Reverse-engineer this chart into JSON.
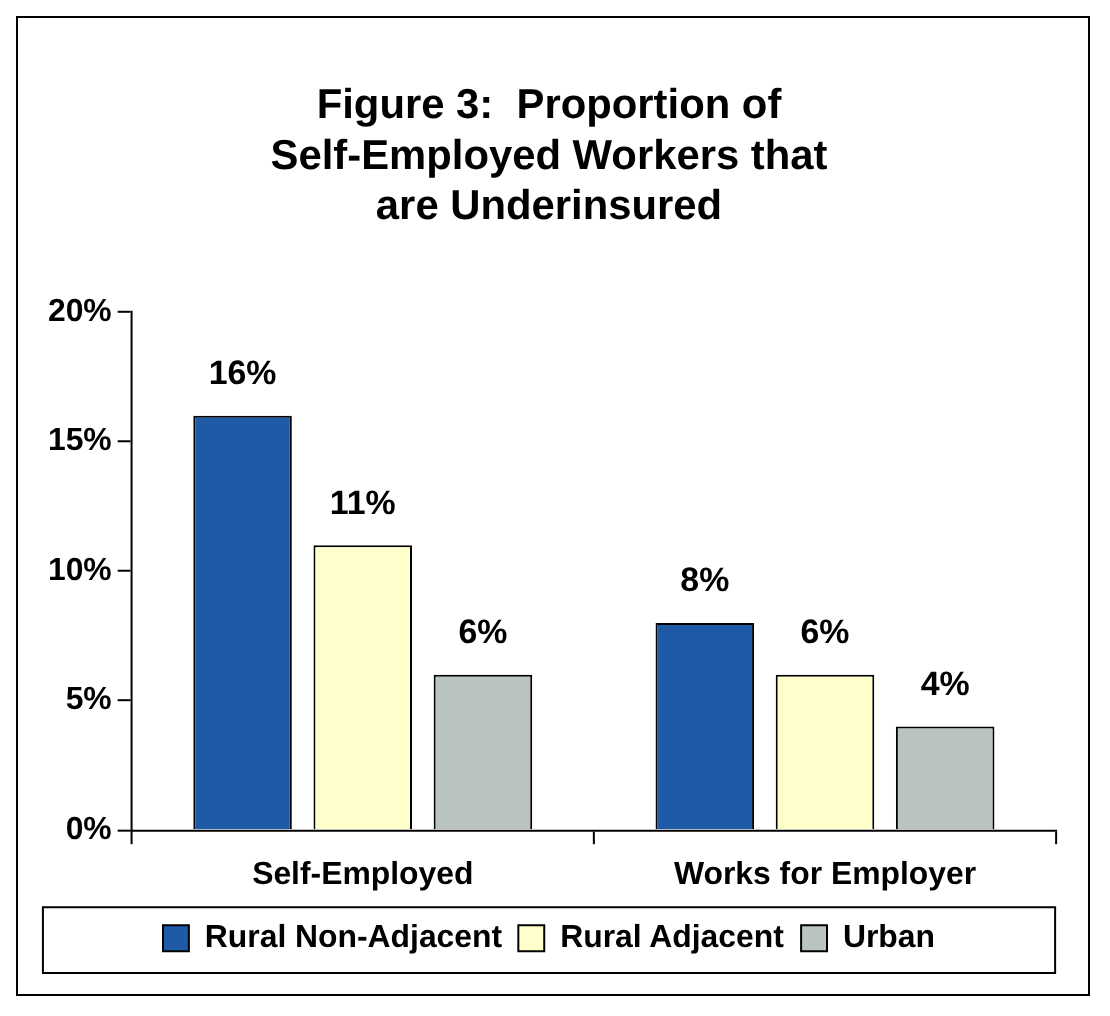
{
  "chart_data": {
    "type": "bar",
    "title": "Figure 3:  Proportion of Self-Employed Workers that are Underinsured",
    "categories": [
      "Self-Employed",
      "Works for Employer"
    ],
    "series": [
      {
        "name": "Rural Non-Adjacent",
        "color": "#1f5aa6",
        "values": [
          16,
          8
        ],
        "value_labels": [
          "16%",
          "8%"
        ]
      },
      {
        "name": "Rural Adjacent",
        "color": "#ffffcc",
        "values": [
          11,
          6
        ],
        "value_labels": [
          "11%",
          "6%"
        ]
      },
      {
        "name": "Urban",
        "color": "#b9c4bf",
        "values": [
          6,
          4
        ],
        "value_labels": [
          "6%",
          "4%"
        ]
      }
    ],
    "ylim": [
      0,
      20
    ],
    "yticks": [
      {
        "value": 0,
        "label": "0%"
      },
      {
        "value": 5,
        "label": "5%"
      },
      {
        "value": 10,
        "label": "10%"
      },
      {
        "value": 15,
        "label": "15%"
      },
      {
        "value": 20,
        "label": "20%"
      }
    ],
    "grid": false,
    "legend": "bottom"
  }
}
